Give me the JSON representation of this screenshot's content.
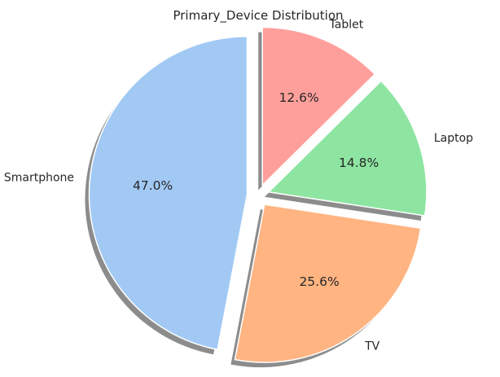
{
  "chart_data": {
    "type": "pie",
    "title": "Primary_Device Distribution",
    "slices": [
      {
        "label": "Tablet",
        "value": 12.6,
        "pct_label": "12.6%",
        "color": "#ff9f9b"
      },
      {
        "label": "Laptop",
        "value": 14.8,
        "pct_label": "14.8%",
        "color": "#8de5a1"
      },
      {
        "label": "TV",
        "value": 25.6,
        "pct_label": "25.6%",
        "color": "#ffb482"
      },
      {
        "label": "Smartphone",
        "value": 47.0,
        "pct_label": "47.0%",
        "color": "#a1c9f4"
      }
    ],
    "start_angle_deg": 90,
    "direction": "clockwise",
    "exploded": true,
    "shadow": true,
    "legend": "none"
  }
}
